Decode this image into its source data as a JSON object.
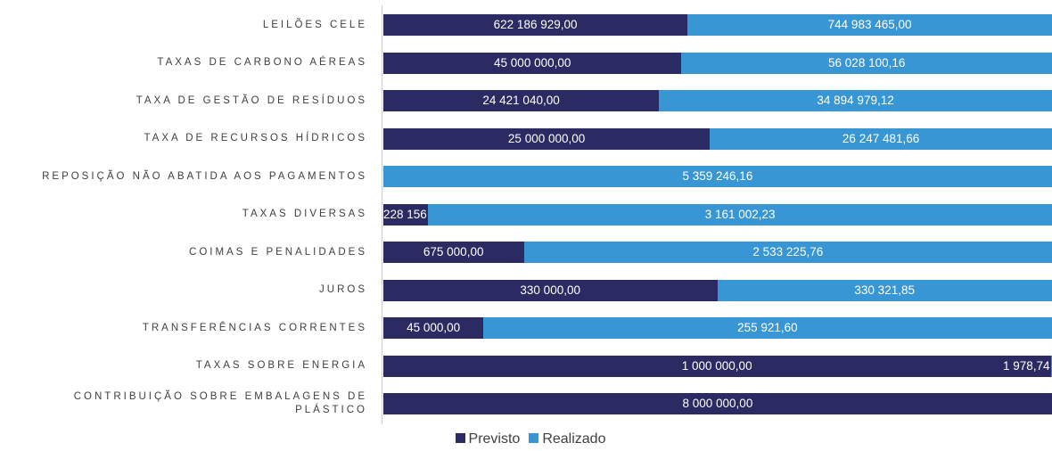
{
  "chart_data": {
    "type": "stacked_bar_100",
    "categories": [
      "LEILÕES CELE",
      "TAXAS DE CARBONO AÉREAS",
      "TAXA DE GESTÃO DE RESÍDUOS",
      "TAXA DE RECURSOS HÍDRICOS",
      "REPOSIÇÃO NÃO ABATIDA AOS PAGAMENTOS",
      "TAXAS DIVERSAS",
      "COIMAS E PENALIDADES",
      "JUROS",
      "TRANSFERÊNCIAS CORRENTES",
      "TAXAS SOBRE ENERGIA",
      "CONTRIBUIÇÃO SOBRE EMBALAGENS DE PLÁSTICO"
    ],
    "series": [
      {
        "name": "Previsto",
        "color": "#2b2a63",
        "values": [
          622186929.0,
          45000000.0,
          24421040.0,
          25000000.0,
          0,
          228156.0,
          675000.0,
          330000.0,
          45000.0,
          1000000.0,
          8000000.0
        ],
        "value_labels": [
          "622 186 929,00",
          "45 000 000,00",
          "24 421 040,00",
          "25 000 000,00",
          "-",
          "228 156,00",
          "675 000,00",
          "330 000,00",
          "45 000,00",
          "1 000 000,00",
          "8 000 000,00"
        ]
      },
      {
        "name": "Realizado",
        "color": "#3796d3",
        "values": [
          744983465.0,
          56028100.16,
          34894979.12,
          26247481.66,
          5359246.16,
          3161002.23,
          2533225.76,
          330321.85,
          255921.6,
          1978.74,
          0
        ],
        "value_labels": [
          "744 983 465,00",
          "56 028 100,16",
          "34 894 979,12",
          "26 247 481,66",
          "5 359 246,16",
          "3 161 002,23",
          "2 533 225,76",
          "330 321,85",
          "255 921,60",
          "1 978,74",
          null
        ]
      }
    ],
    "legend": "bottom"
  }
}
